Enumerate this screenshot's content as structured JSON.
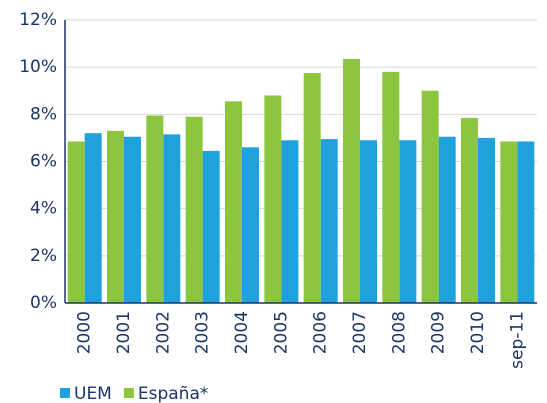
{
  "chart_data": {
    "type": "bar",
    "categories": [
      "2000",
      "2001",
      "2002",
      "2003",
      "2004",
      "2005",
      "2006",
      "2007",
      "2008",
      "2009",
      "2010",
      "sep-11"
    ],
    "series": [
      {
        "name": "UEM",
        "color": "#1ea1dc",
        "values": [
          7.2,
          7.05,
          7.15,
          6.45,
          6.6,
          6.9,
          6.95,
          6.9,
          6.9,
          7.05,
          7.0,
          6.85
        ]
      },
      {
        "name": "España*",
        "color": "#8cc63f",
        "values": [
          6.85,
          7.3,
          7.95,
          7.9,
          8.55,
          8.8,
          9.75,
          10.35,
          9.8,
          9.0,
          7.85,
          6.85
        ]
      }
    ],
    "ylim": [
      0,
      12
    ],
    "yticks": [
      {
        "value": 0,
        "label": "0%"
      },
      {
        "value": 2,
        "label": "2%"
      },
      {
        "value": 4,
        "label": "4%"
      },
      {
        "value": 6,
        "label": "6%"
      },
      {
        "value": 8,
        "label": "8%"
      },
      {
        "value": 10,
        "label": "10%"
      },
      {
        "value": 12,
        "label": "12%"
      }
    ],
    "grid": true,
    "legend": "bottom-left"
  }
}
